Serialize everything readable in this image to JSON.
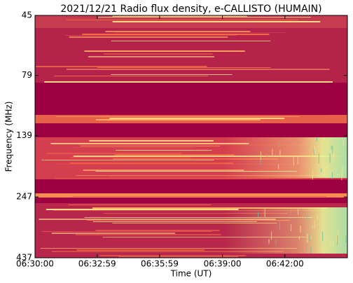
{
  "chart_data": {
    "type": "spectrogram",
    "title": "2021/12/21  Radio flux density, e-CALLISTO (HUMAIN)",
    "x_label": "Time (UT)",
    "y_label": "Frequency (MHz)",
    "xlim": [
      23400,
      24300
    ],
    "xticks": [
      {
        "value": 23400,
        "label": "06:30:00"
      },
      {
        "value": 23579,
        "label": "06:32:59"
      },
      {
        "value": 23759,
        "label": "06:35:59"
      },
      {
        "value": 23940,
        "label": "06:39:00"
      },
      {
        "value": 24120,
        "label": "06:42:00"
      }
    ],
    "ylim": [
      437,
      45
    ],
    "y_log": true,
    "yticks": [
      45,
      79,
      139,
      247,
      437
    ]
  }
}
